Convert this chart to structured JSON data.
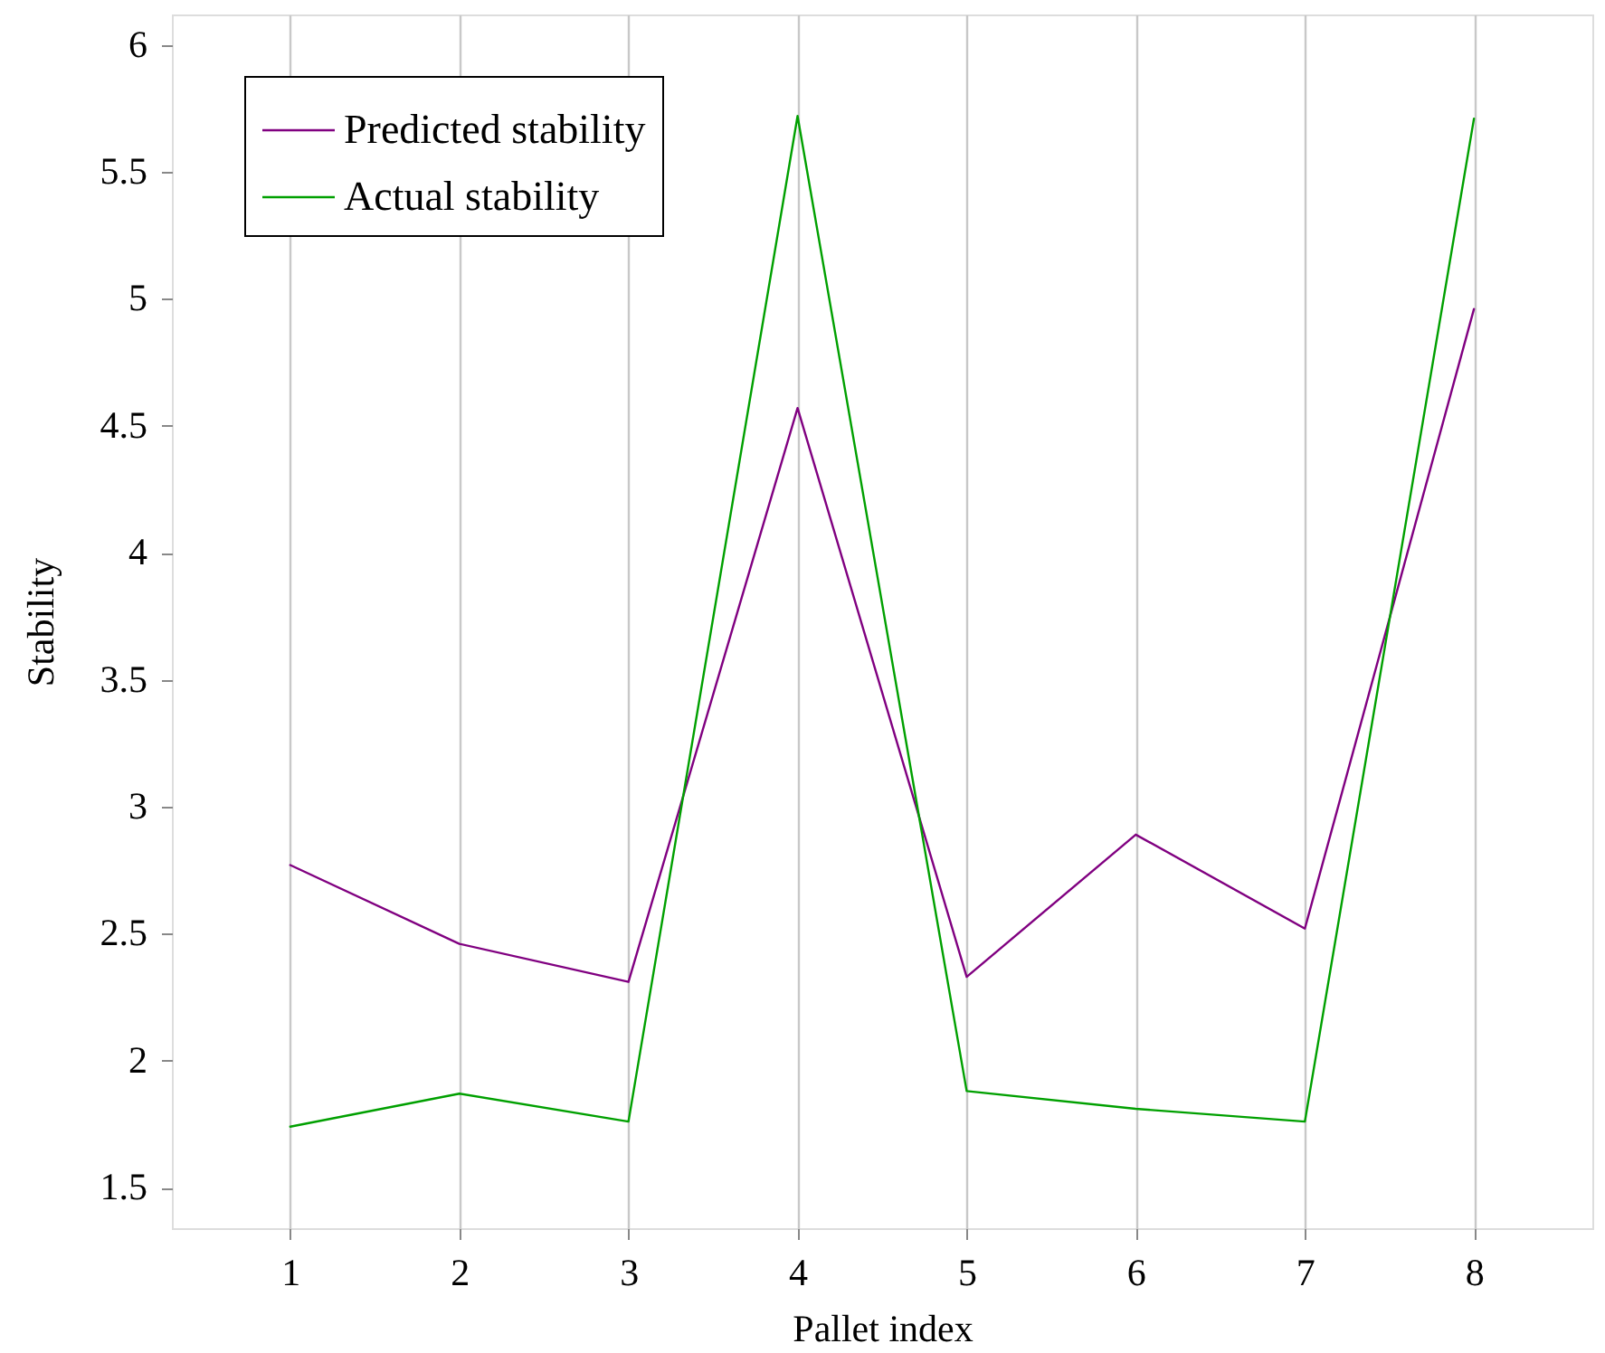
{
  "chart_data": {
    "type": "line",
    "xlabel": "Pallet index",
    "ylabel": "Stability",
    "x": [
      1,
      2,
      3,
      4,
      5,
      6,
      7,
      8
    ],
    "series": [
      {
        "name": "Predicted stability",
        "color": "#800080",
        "values": [
          2.77,
          2.46,
          2.31,
          4.57,
          2.33,
          2.89,
          2.52,
          4.96
        ]
      },
      {
        "name": "Actual stability",
        "color": "#00a000",
        "values": [
          1.74,
          1.87,
          1.76,
          5.72,
          1.88,
          1.81,
          1.76,
          5.71
        ]
      }
    ],
    "xlim": [
      0.3,
      8.7
    ],
    "ylim": [
      1.34,
      6.12
    ],
    "xticks": [
      1,
      2,
      3,
      4,
      5,
      6,
      7,
      8
    ],
    "yticks": [
      1.5,
      2,
      2.5,
      3,
      3.5,
      4,
      4.5,
      5,
      5.5,
      6
    ],
    "grid": "x",
    "legend": "top left",
    "line_style": "solid"
  }
}
